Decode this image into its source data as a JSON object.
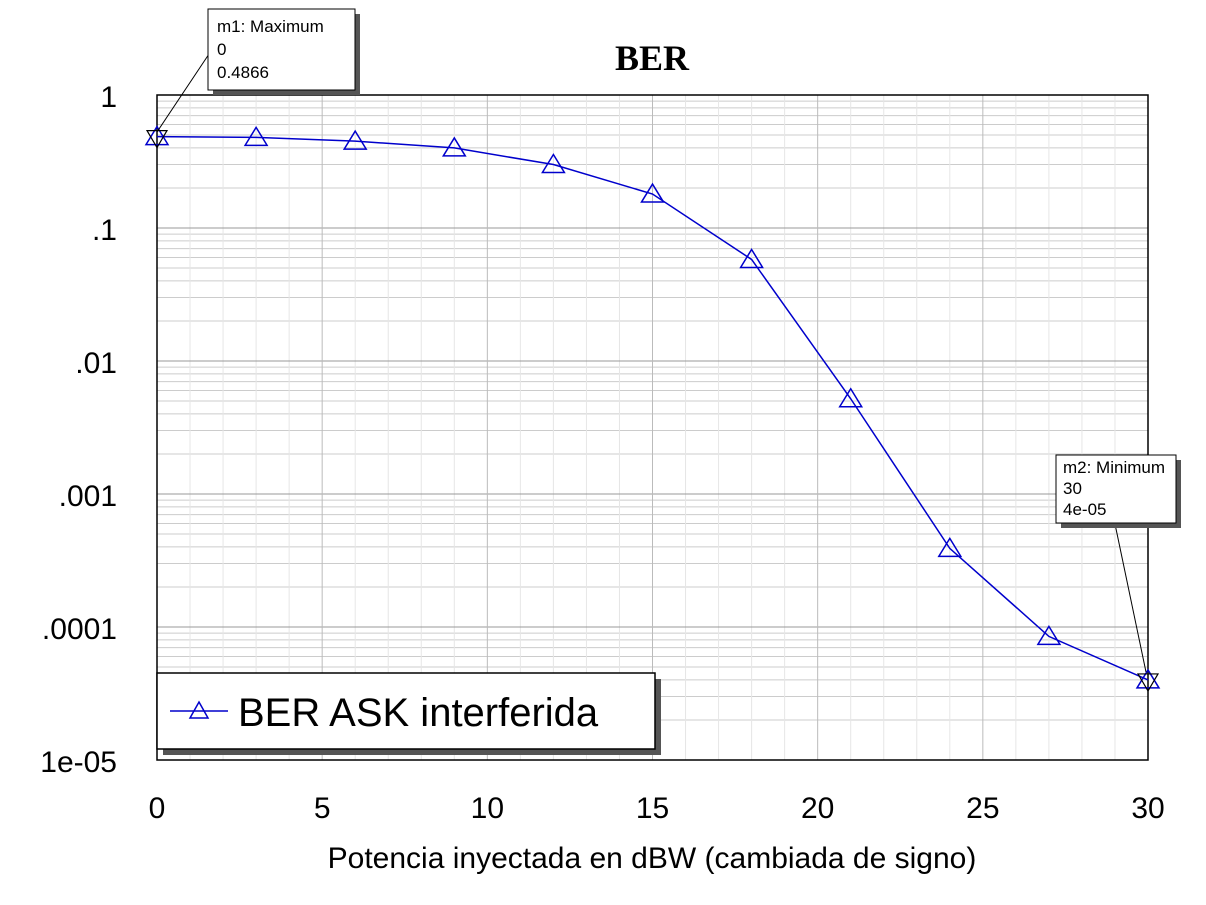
{
  "chart_data": {
    "type": "line",
    "title": "BER",
    "xlabel": "Potencia inyectada en dBW (cambiada de signo)",
    "ylabel": "",
    "y_scale": "log",
    "grid": true,
    "legend_position": "bottom-left",
    "xlim": [
      0,
      30
    ],
    "ylim": [
      1e-05,
      1
    ],
    "x_ticks": [
      0,
      5,
      10,
      15,
      20,
      25,
      30
    ],
    "x_tick_labels": [
      "0",
      "5",
      "10",
      "15",
      "20",
      "25",
      "30"
    ],
    "y_ticks": [
      1,
      0.1,
      0.01,
      0.001,
      0.0001,
      1e-05
    ],
    "y_tick_labels": [
      "1",
      ".1",
      ".01",
      ".001",
      ".0001",
      "1e-05"
    ],
    "series": [
      {
        "name": "BER ASK interferida",
        "color": "#0000cc",
        "marker": "triangle-up",
        "x": [
          0,
          3,
          6,
          9,
          12,
          15,
          18,
          21,
          24,
          27,
          30
        ],
        "y": [
          0.4866,
          0.48,
          0.45,
          0.4,
          0.3,
          0.18,
          0.058,
          0.0052,
          0.00039,
          8.5e-05,
          4e-05
        ]
      }
    ],
    "markers": [
      {
        "label": "m1: Maximum",
        "x_text": "0",
        "y_text": "0.4866",
        "x": 0,
        "y": 0.4866
      },
      {
        "label": "m2: Minimum",
        "x_text": "30",
        "y_text": "4e-05",
        "x": 30,
        "y": 4e-05
      }
    ]
  }
}
